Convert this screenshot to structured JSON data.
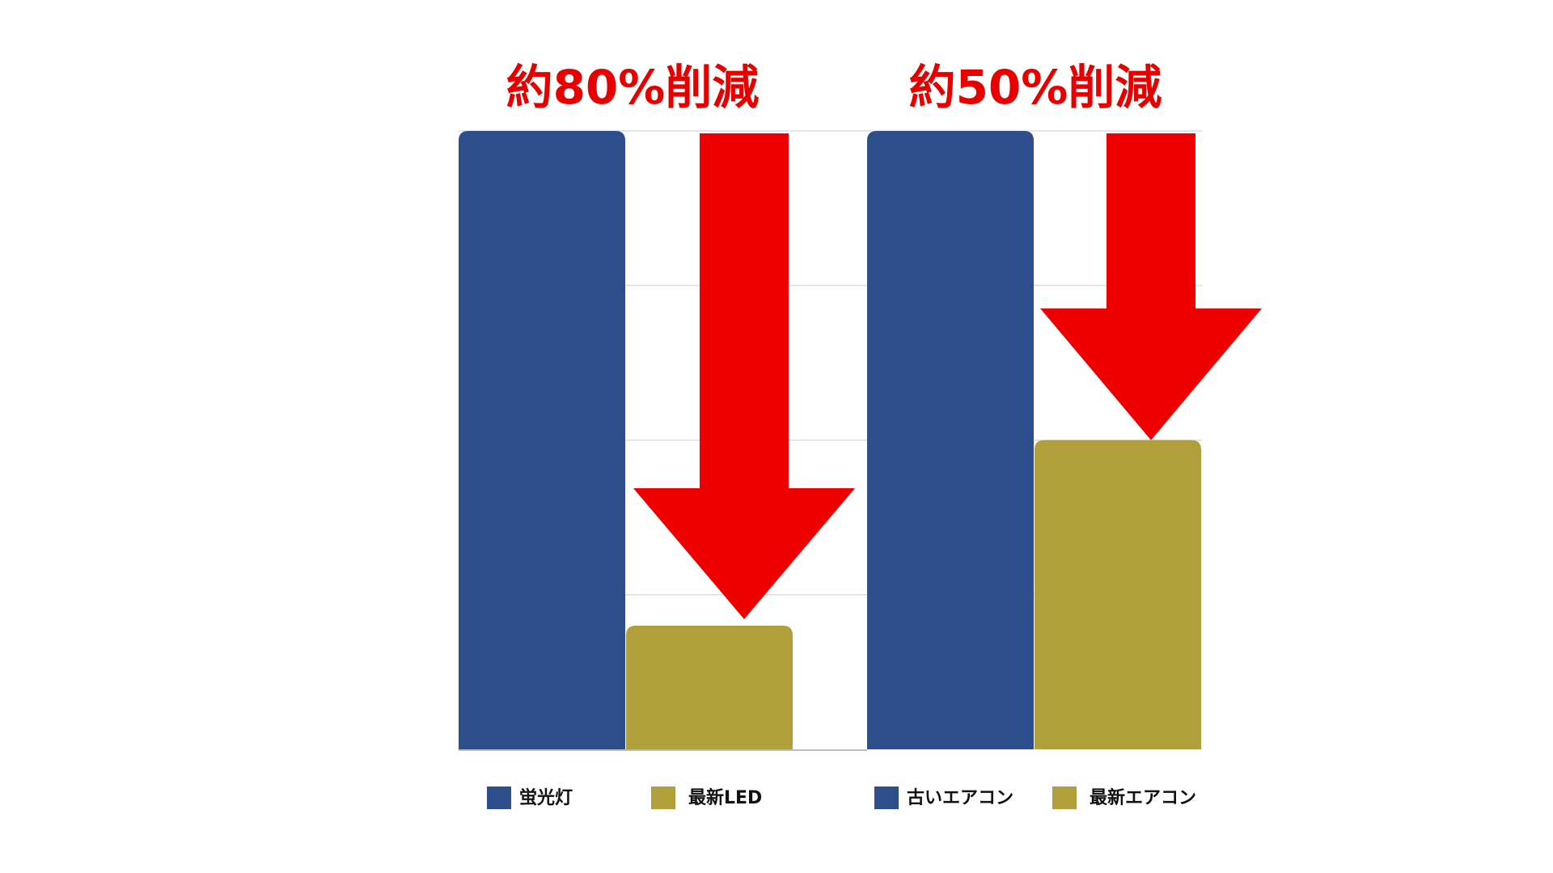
{
  "chart_data": {
    "type": "bar",
    "ylim": [
      0,
      100
    ],
    "yticks": [
      0,
      25,
      50,
      75,
      100
    ],
    "grid": true,
    "groups": [
      {
        "annotation": "約80%削減",
        "series": [
          {
            "name": "蛍光灯",
            "color": "#2d4e8a",
            "values": [
              100
            ]
          },
          {
            "name": "最新LED",
            "color": "#b19f3b",
            "values": [
              20
            ]
          }
        ]
      },
      {
        "annotation": "約50%削減",
        "series": [
          {
            "name": "古いエアコン",
            "color": "#2d4e8a",
            "values": [
              100
            ]
          },
          {
            "name": "最新エアコン",
            "color": "#b19f3b",
            "values": [
              50
            ]
          }
        ]
      }
    ]
  }
}
